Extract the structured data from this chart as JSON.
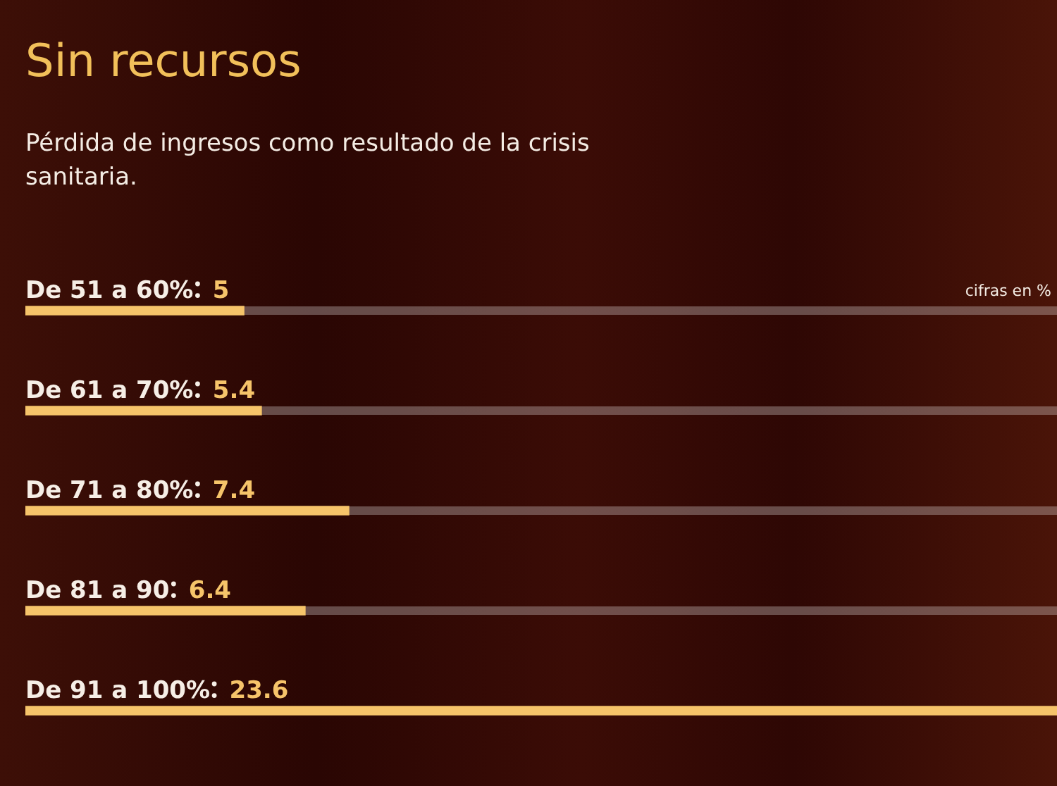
{
  "chart_data": {
    "type": "bar",
    "orientation": "horizontal",
    "title": "Sin recursos",
    "subtitle": "Pérdida de ingresos como resultado de la crisis sanitaria.",
    "annotations": [
      "cifras en %"
    ],
    "categories": [
      "De 51 a 60%",
      "De 61 a 70%",
      "De 71 a 80%",
      "De 81 a 90",
      "De 91 a 100%"
    ],
    "values": [
      5,
      5.4,
      7.4,
      6.4,
      23.6
    ],
    "color": "#f6c46a",
    "data_labels": true
  }
}
